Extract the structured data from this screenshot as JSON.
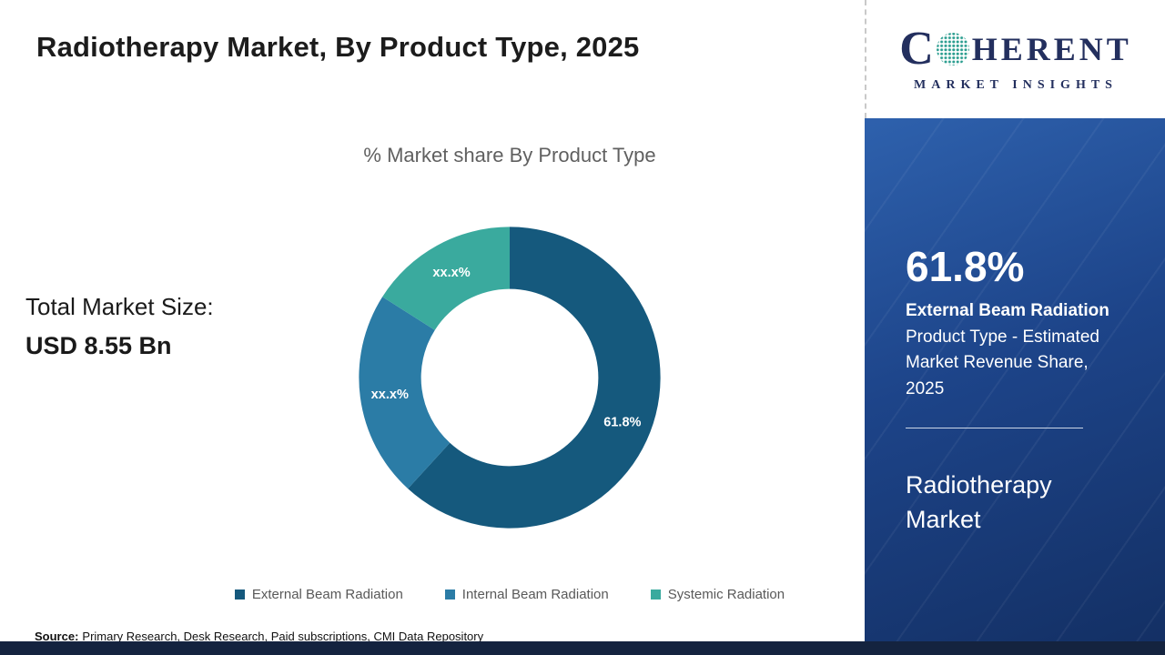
{
  "header": {
    "title": "Radiotherapy Market, By Product Type, 2025"
  },
  "chart_data": {
    "type": "pie",
    "donut": true,
    "title": "% Market share By Product Type",
    "categories": [
      "External Beam Radiation",
      "Internal Beam Radiation",
      "Systemic Radiation"
    ],
    "values": [
      61.8,
      22.2,
      16.0
    ],
    "slice_labels": [
      "61.8%",
      "xx.x%",
      "xx.x%"
    ],
    "colors": [
      "#15597D",
      "#2B7CA6",
      "#3AAA9E"
    ],
    "legend_position": "bottom"
  },
  "market_size": {
    "label": "Total Market Size:",
    "value": "USD 8.55 Bn"
  },
  "source": {
    "label": "Source:",
    "text": "Primary Research, Desk Research, Paid subscriptions, CMI Data Repository"
  },
  "sidebar": {
    "stat_value": "61.8%",
    "stat_title": "External Beam Radiation",
    "stat_desc": "Product Type - Estimated Market Revenue Share, 2025",
    "market_name": "Radiotherapy Market"
  },
  "logo": {
    "c_letter": "C",
    "rest_letters": "HERENT",
    "subtitle": "MARKET INSIGHTS"
  }
}
